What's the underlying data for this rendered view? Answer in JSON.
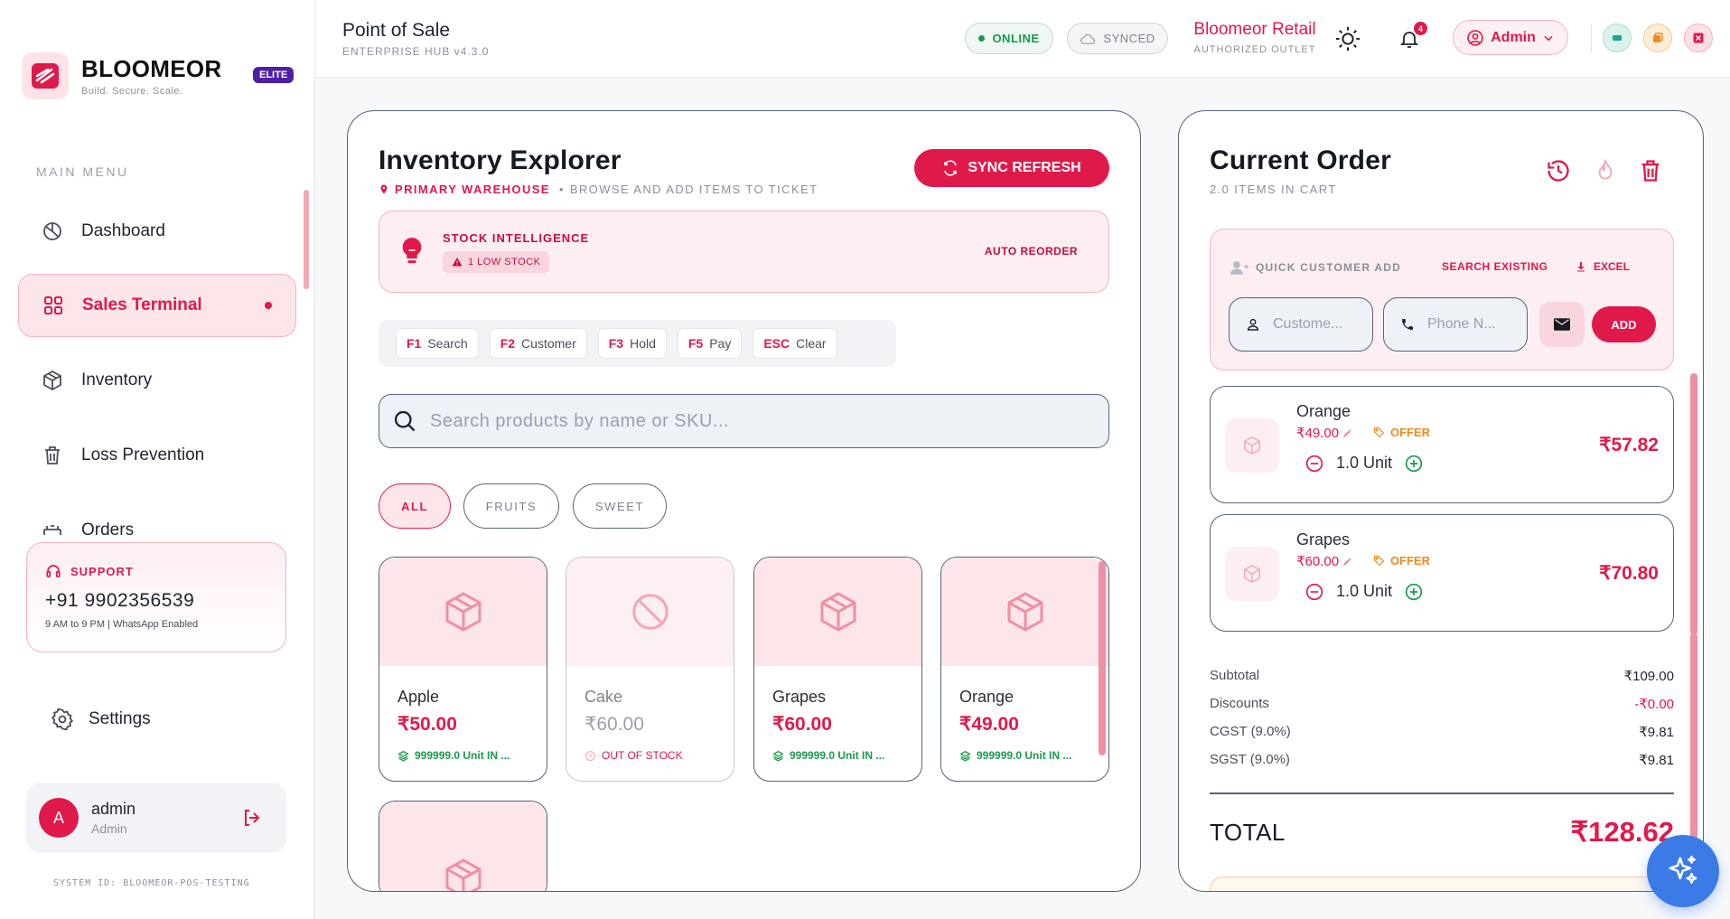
{
  "sidebar": {
    "brand": "BLOOMEOR",
    "tagline": "Build. Secure. Scale.",
    "tier": "ELITE",
    "menu_heading": "MAIN MENU",
    "items": [
      {
        "label": "Dashboard",
        "icon": "pie-chart-icon"
      },
      {
        "label": "Sales Terminal",
        "icon": "grid-icon",
        "active": true
      },
      {
        "label": "Inventory",
        "icon": "box-icon"
      },
      {
        "label": "Loss Prevention",
        "icon": "trash-icon"
      },
      {
        "label": "Orders",
        "icon": "orders-icon"
      }
    ],
    "support": {
      "label": "SUPPORT",
      "phone": "+91 9902356539",
      "hours": "9 AM to 9 PM | WhatsApp Enabled"
    },
    "settings": "Settings",
    "user": {
      "initial": "A",
      "name": "admin",
      "role": "Admin"
    },
    "system_id": "SYSTEM ID: BLOOMEOR-POS-TESTING"
  },
  "topbar": {
    "title": "Point of Sale",
    "subtitle": "ENTERPRISE HUB v4.3.0",
    "online": "ONLINE",
    "synced": "SYNCED",
    "store_name": "Bloomeor Retail",
    "store_sub": "AUTHORIZED OUTLET",
    "notifications": "4",
    "user_menu": "Admin"
  },
  "inventory": {
    "title": "Inventory Explorer",
    "warehouse": "PRIMARY WAREHOUSE",
    "hint": "BROWSE AND ADD ITEMS TO TICKET",
    "sync_button": "SYNC REFRESH",
    "intel": {
      "title": "STOCK INTELLIGENCE",
      "badge": "1 LOW STOCK",
      "action": "AUTO REORDER"
    },
    "shortcuts": [
      {
        "key": "F1",
        "label": "Search"
      },
      {
        "key": "F2",
        "label": "Customer"
      },
      {
        "key": "F3",
        "label": "Hold"
      },
      {
        "key": "F5",
        "label": "Pay"
      },
      {
        "key": "ESC",
        "label": "Clear"
      }
    ],
    "search_placeholder": "Search products by name or SKU...",
    "categories": [
      "ALL",
      "FRUITS",
      "SWEET"
    ],
    "products": [
      {
        "name": "Apple",
        "price": "₹50.00",
        "stock": "999999.0 Unit IN ..."
      },
      {
        "name": "Cake",
        "price": "₹60.00",
        "stock": "OUT OF STOCK"
      },
      {
        "name": "Grapes",
        "price": "₹60.00",
        "stock": "999999.0 Unit IN ..."
      },
      {
        "name": "Orange",
        "price": "₹49.00",
        "stock": "999999.0 Unit IN ..."
      }
    ]
  },
  "order": {
    "title": "Current Order",
    "count": "2.0 ITEMS IN CART",
    "customer": {
      "heading": "QUICK CUSTOMER ADD",
      "search": "SEARCH EXISTING",
      "excel": "EXCEL",
      "name_placeholder": "Custome...",
      "phone_placeholder": "Phone N...",
      "add": "ADD"
    },
    "items": [
      {
        "name": "Orange",
        "unit_price": "₹49.00",
        "offer": "OFFER",
        "qty": "1.0 Unit",
        "total": "₹57.82"
      },
      {
        "name": "Grapes",
        "unit_price": "₹60.00",
        "offer": "OFFER",
        "qty": "1.0 Unit",
        "total": "₹70.80"
      }
    ],
    "summary": [
      {
        "label": "Subtotal",
        "value": "₹109.00"
      },
      {
        "label": "Discounts",
        "value": "-₹0.00"
      },
      {
        "label": "CGST (9.0%)",
        "value": "₹9.81"
      },
      {
        "label": "SGST (9.0%)",
        "value": "₹9.81"
      }
    ],
    "total_label": "TOTAL",
    "total_value": "₹128.62"
  },
  "colors": {
    "accent": "#e0194b",
    "success": "#1a9a4b",
    "offer": "#f08a1c",
    "fab": "#3b7be8"
  }
}
